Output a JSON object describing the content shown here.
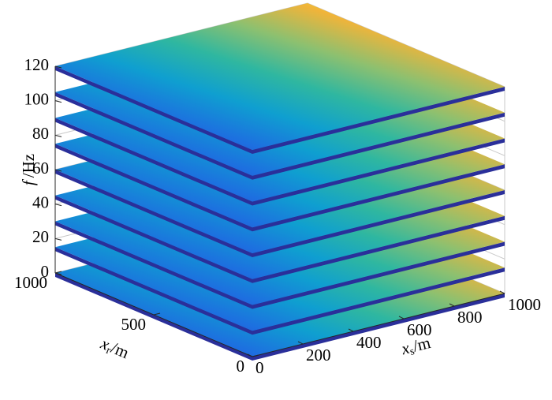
{
  "chart_data": {
    "type": "slices3d",
    "xlabel": {
      "var": "x",
      "sub": "s",
      "unit": "/m"
    },
    "ylabel": {
      "var": "x",
      "sub": "r",
      "unit": "/m"
    },
    "zlabel": {
      "var": "f",
      "unit": "/Hz"
    },
    "xlim": [
      0,
      1000
    ],
    "xticks": [
      0,
      200,
      400,
      600,
      800,
      1000
    ],
    "ylim": [
      0,
      1000
    ],
    "yticks": [
      0,
      500,
      1000
    ],
    "zlim": [
      0,
      120
    ],
    "zticks": [
      0,
      20,
      40,
      60,
      80,
      100,
      120
    ],
    "slices": [
      0,
      15,
      30,
      45,
      60,
      75,
      90,
      105,
      120
    ],
    "colormap": [
      "#3a3cc8",
      "#1d6fe0",
      "#0f9fd0",
      "#2fb7a0",
      "#8cc070",
      "#f0b43a",
      "#f8f020"
    ],
    "grid": true
  }
}
